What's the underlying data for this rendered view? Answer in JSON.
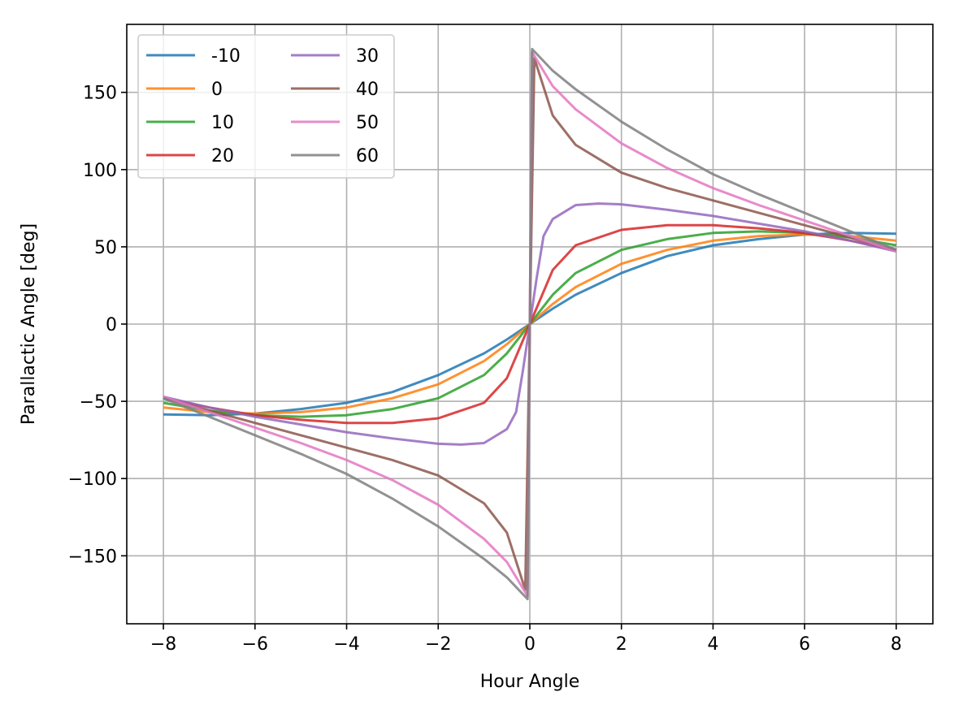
{
  "chart_data": {
    "type": "line",
    "title": "",
    "xlabel": "Hour Angle",
    "ylabel": "Parallactic Angle [deg]",
    "xlim": [
      -8.8,
      8.8
    ],
    "ylim": [
      -194,
      194
    ],
    "grid": true,
    "legend_position": "top-left",
    "legend_columns": 2,
    "x_ticks": [
      -8,
      -6,
      -4,
      -2,
      0,
      2,
      4,
      6,
      8
    ],
    "x_tick_labels": [
      "−8",
      "−6",
      "−4",
      "−2",
      "0",
      "2",
      "4",
      "6",
      "8"
    ],
    "y_ticks": [
      -150,
      -100,
      -50,
      0,
      50,
      100,
      150
    ],
    "y_tick_labels": [
      "−150",
      "−100",
      "−50",
      "0",
      "50",
      "100",
      "150"
    ],
    "series": [
      {
        "name": "-10",
        "color": "#1f77b4",
        "x": [
          -8,
          -7,
          -6,
          -5,
          -4,
          -3,
          -2,
          -1,
          -0.5,
          0,
          0.5,
          1,
          2,
          3,
          4,
          5,
          6,
          7,
          8
        ],
        "y": [
          -58.5,
          -59,
          -58,
          -55,
          -51,
          -44,
          -33,
          -19,
          -10,
          0,
          10,
          19,
          33,
          44,
          51,
          55,
          58,
          59,
          58.5
        ]
      },
      {
        "name": "0",
        "color": "#ff7f0e",
        "x": [
          -8,
          -7,
          -6,
          -5,
          -4,
          -3,
          -2,
          -1,
          -0.5,
          0,
          0.5,
          1,
          2,
          3,
          4,
          5,
          6,
          7,
          8
        ],
        "y": [
          -54,
          -57,
          -58,
          -57,
          -54,
          -48,
          -39,
          -24,
          -13,
          0,
          13,
          24,
          39,
          48,
          54,
          57,
          58,
          57,
          54
        ]
      },
      {
        "name": "10",
        "color": "#2ca02c",
        "x": [
          -8,
          -7,
          -6,
          -5,
          -4,
          -3,
          -2,
          -1,
          -0.5,
          0,
          0.5,
          1,
          2,
          3,
          4,
          5,
          6,
          7,
          8
        ],
        "y": [
          -51,
          -56,
          -59,
          -60,
          -59,
          -55,
          -48,
          -33,
          -19,
          0,
          19,
          33,
          48,
          55,
          59,
          60,
          59,
          56,
          51
        ]
      },
      {
        "name": "20",
        "color": "#d62728",
        "x": [
          -8,
          -7,
          -6,
          -5,
          -4,
          -3,
          -2,
          -1,
          -0.5,
          0,
          0.5,
          1,
          2,
          3,
          4,
          5,
          6,
          7,
          8
        ],
        "y": [
          -48,
          -54,
          -59,
          -62,
          -64,
          -64,
          -61,
          -51,
          -35,
          0,
          35,
          51,
          61,
          64,
          64,
          62,
          59,
          54,
          48
        ]
      },
      {
        "name": "30",
        "color": "#9467bd",
        "x": [
          -8,
          -7,
          -6,
          -5,
          -4,
          -3,
          -2,
          -1.5,
          -1,
          -0.5,
          -0.3,
          -0.15,
          0,
          0.15,
          0.3,
          0.5,
          1,
          1.5,
          2,
          3,
          4,
          5,
          6,
          7,
          8
        ],
        "y": [
          -47,
          -54,
          -60,
          -65,
          -70,
          -74,
          -77.5,
          -78,
          -77,
          -68,
          -57,
          -30,
          0,
          30,
          57,
          68,
          77,
          78,
          77.5,
          74,
          70,
          65,
          60,
          54,
          47
        ]
      },
      {
        "name": "40",
        "color": "#8c564b",
        "x": [
          -8,
          -7,
          -6,
          -5,
          -4,
          -3,
          -2,
          -1,
          -0.5,
          -0.1,
          0.1,
          0.5,
          1,
          2,
          3,
          4,
          5,
          6,
          7,
          8
        ],
        "y": [
          -48,
          -56,
          -64,
          -72,
          -80,
          -88,
          -98,
          -116,
          -135,
          -172,
          172,
          135,
          116,
          98,
          88,
          80,
          72,
          64,
          56,
          48
        ]
      },
      {
        "name": "50",
        "color": "#e377c2",
        "x": [
          -8,
          -7,
          -6,
          -5,
          -4,
          -3,
          -2,
          -1,
          -0.5,
          -0.05,
          0.05,
          0.5,
          1,
          2,
          3,
          4,
          5,
          6,
          7,
          8
        ],
        "y": [
          -47,
          -57,
          -67,
          -77,
          -88,
          -101,
          -117,
          -139,
          -154,
          -176,
          176,
          154,
          139,
          117,
          101,
          88,
          77,
          67,
          57,
          47
        ]
      },
      {
        "name": "60",
        "color": "#7f7f7f",
        "x": [
          -8,
          -7,
          -6,
          -5,
          -4,
          -3,
          -2,
          -1,
          -0.5,
          -0.05,
          0.05,
          0.5,
          1,
          2,
          3,
          4,
          5,
          6,
          7,
          8
        ],
        "y": [
          -48,
          -60,
          -72,
          -84,
          -97,
          -113,
          -131,
          -152,
          -164,
          -178,
          178,
          164,
          152,
          131,
          113,
          97,
          84,
          72,
          60,
          48
        ]
      }
    ]
  }
}
